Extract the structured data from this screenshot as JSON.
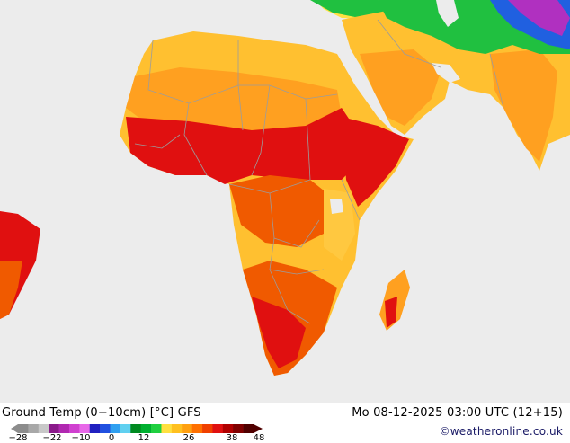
{
  "legend": {
    "title": "Ground Temp (0−10cm) [°C] GFS",
    "ticks": [
      "−28",
      "−22",
      "−10",
      "0",
      "12",
      "26",
      "38",
      "48"
    ],
    "swatches": [
      "#8c8c8c",
      "#a8a8a8",
      "#c8c8c8",
      "#8a1a8a",
      "#b028b0",
      "#d040d0",
      "#e868e8",
      "#2020c0",
      "#2050e0",
      "#30a0f0",
      "#60d0f0",
      "#008a20",
      "#00b030",
      "#20d040",
      "#ffe040",
      "#ffc020",
      "#ffa010",
      "#ff7000",
      "#f04000",
      "#e01010",
      "#b00000",
      "#800000",
      "#500000"
    ]
  },
  "valid_time": "Mo 08-12-2025 03:00 UTC (12+15)",
  "credit": "©weatheronline.co.uk",
  "colors": {
    "ocean": "#ececec",
    "border": "#9c9c9c",
    "very_hot": "#e01010",
    "hot": "#f05a00",
    "warm": "#ffa020",
    "mild": "#ffc840",
    "cool": "#ffe850",
    "cold": "#20c040",
    "frost": "#2060e0",
    "deep_frost": "#b030c0"
  }
}
